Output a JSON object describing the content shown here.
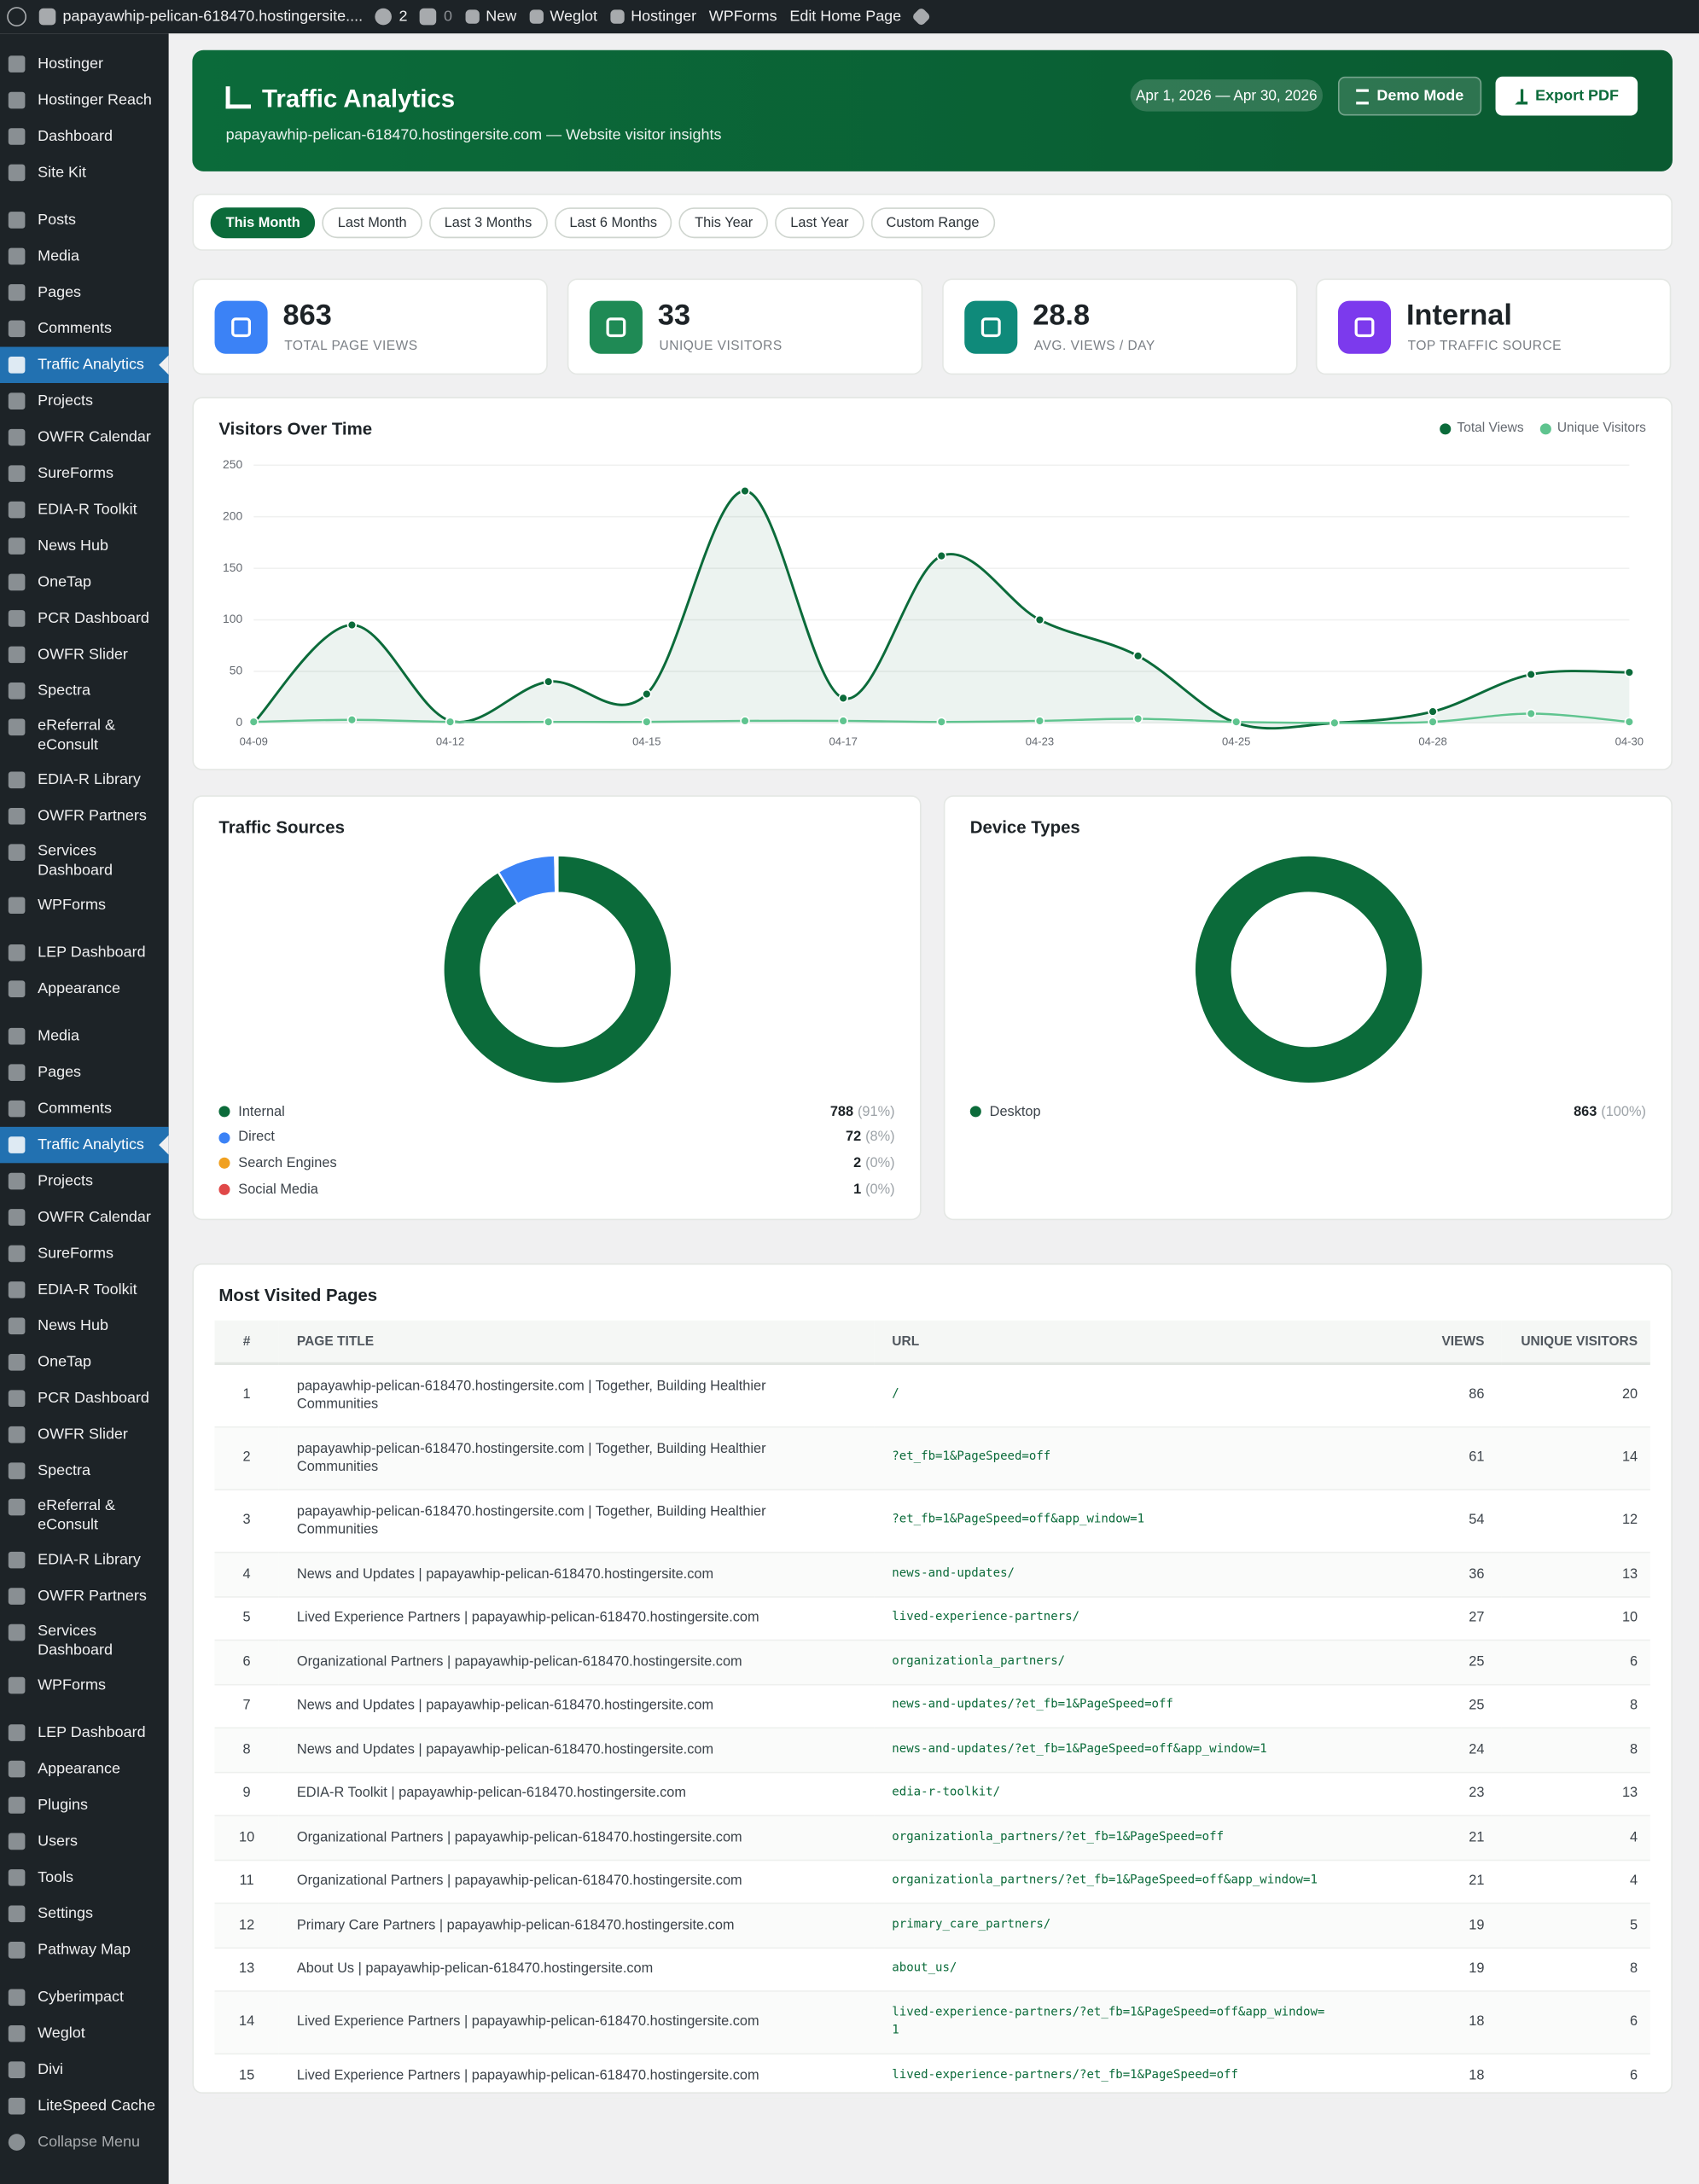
{
  "admin_bar": {
    "site": "papayawhip-pelican-618470.hostingersite....",
    "updates": 2,
    "comments": 0,
    "items": [
      "New",
      "Weglot",
      "Hostinger",
      "WPForms",
      "Edit Home Page"
    ]
  },
  "sidebar": {
    "groups": [
      [
        {
          "label": "Hostinger"
        },
        {
          "label": "Hostinger Reach"
        },
        {
          "label": "Dashboard"
        },
        {
          "label": "Site Kit"
        }
      ],
      [
        {
          "label": "Posts"
        },
        {
          "label": "Media"
        },
        {
          "label": "Pages"
        },
        {
          "label": "Comments"
        },
        {
          "label": "Traffic Analytics",
          "active": true
        },
        {
          "label": "Projects"
        },
        {
          "label": "OWFR Calendar"
        },
        {
          "label": "SureForms"
        },
        {
          "label": "EDIA-R Toolkit"
        },
        {
          "label": "News Hub"
        },
        {
          "label": "OneTap"
        },
        {
          "label": "PCR Dashboard"
        },
        {
          "label": "OWFR Slider"
        },
        {
          "label": "Spectra"
        },
        {
          "label": "eReferral & eConsult"
        },
        {
          "label": "EDIA-R Library"
        },
        {
          "label": "OWFR Partners"
        },
        {
          "label": "Services Dashboard"
        },
        {
          "label": "WPForms"
        }
      ],
      [
        {
          "label": "LEP Dashboard"
        },
        {
          "label": "Appearance"
        }
      ],
      [
        {
          "label": "Media"
        },
        {
          "label": "Pages"
        },
        {
          "label": "Comments"
        },
        {
          "label": "Traffic Analytics",
          "active": true
        },
        {
          "label": "Projects"
        },
        {
          "label": "OWFR Calendar"
        },
        {
          "label": "SureForms"
        },
        {
          "label": "EDIA-R Toolkit"
        },
        {
          "label": "News Hub"
        },
        {
          "label": "OneTap"
        },
        {
          "label": "PCR Dashboard"
        },
        {
          "label": "OWFR Slider"
        },
        {
          "label": "Spectra"
        },
        {
          "label": "eReferral & eConsult"
        },
        {
          "label": "EDIA-R Library"
        },
        {
          "label": "OWFR Partners"
        },
        {
          "label": "Services Dashboard"
        },
        {
          "label": "WPForms"
        }
      ],
      [
        {
          "label": "LEP Dashboard"
        },
        {
          "label": "Appearance"
        },
        {
          "label": "Plugins"
        },
        {
          "label": "Users"
        },
        {
          "label": "Tools"
        },
        {
          "label": "Settings"
        },
        {
          "label": "Pathway Map"
        }
      ],
      [
        {
          "label": "Cyberimpact"
        },
        {
          "label": "Weglot"
        },
        {
          "label": "Divi"
        },
        {
          "label": "LiteSpeed Cache"
        }
      ]
    ],
    "collapse": "Collapse Menu"
  },
  "header": {
    "title": "Traffic Analytics",
    "subtitle": "papayawhip-pelican-618470.hostingersite.com — Website visitor insights",
    "date_range": "Apr 1, 2026 — Apr 30, 2026",
    "buttons": [
      "Demo Mode",
      "Export PDF"
    ]
  },
  "filters": {
    "options": [
      "This Month",
      "Last Month",
      "Last 3 Months",
      "Last 6 Months",
      "This Year",
      "Last Year",
      "Custom Range"
    ],
    "active": 0
  },
  "stats": [
    {
      "value": 863,
      "label": "TOTAL PAGE VIEWS",
      "color": "#3b82f6"
    },
    {
      "value": 33,
      "label": "UNIQUE VISITORS",
      "color": "#1f8a55"
    },
    {
      "value": 28.8,
      "label": "AVG. VIEWS / DAY",
      "color": "#0f8a7a"
    },
    {
      "value": "Internal",
      "label": "TOP TRAFFIC SOURCE",
      "color": "#7c3aed"
    }
  ],
  "chart_data": [
    {
      "type": "line",
      "title": "Visitors Over Time",
      "categories": [
        "04-09",
        null,
        "04-12",
        null,
        "04-15",
        null,
        "04-17",
        null,
        "04-23",
        null,
        "04-25",
        null,
        "04-28",
        null,
        "04-30"
      ],
      "series": [
        {
          "name": "Total Views",
          "color": "#0b6b3a",
          "values": [
            0,
            95,
            2,
            40,
            28,
            225,
            24,
            162,
            100,
            65,
            0,
            0,
            11,
            47,
            49
          ]
        },
        {
          "name": "Unique Visitors",
          "color": "#5fc48f",
          "values": [
            1,
            3,
            1,
            1,
            1,
            2,
            2,
            1,
            2,
            4,
            1,
            0,
            1,
            9,
            1
          ]
        }
      ],
      "ylim": [
        0,
        250
      ],
      "yticks": [
        0,
        50,
        100,
        150,
        200,
        250
      ],
      "grid": true,
      "legend": "top-right"
    },
    {
      "type": "donut",
      "title": "Traffic Sources",
      "categories": [
        "Internal",
        "Direct",
        "Search Engines",
        "Social Media"
      ],
      "values": [
        788,
        72,
        2,
        1
      ],
      "percent_labels": [
        "(91%)",
        "(8%)",
        "(0%)",
        "(0%)"
      ],
      "colors": [
        "#0b6b3a",
        "#3b82f6",
        "#f0a020",
        "#e04848"
      ]
    },
    {
      "type": "donut",
      "title": "Device Types",
      "categories": [
        "Desktop"
      ],
      "values": [
        863
      ],
      "percent_labels": [
        "(100%)"
      ],
      "colors": [
        "#0b6b3a"
      ]
    }
  ],
  "table": {
    "title": "Most Visited Pages",
    "columns": [
      "#",
      "PAGE TITLE",
      "URL",
      "VIEWS",
      "UNIQUE VISITORS"
    ],
    "rows": [
      [
        1,
        "papayawhip-pelican-618470.hostingersite.com | Together, Building Healthier Communities",
        "/",
        86,
        20
      ],
      [
        2,
        "papayawhip-pelican-618470.hostingersite.com | Together, Building Healthier Communities",
        "?et_fb=1&PageSpeed=off",
        61,
        14
      ],
      [
        3,
        "papayawhip-pelican-618470.hostingersite.com | Together, Building Healthier Communities",
        "?et_fb=1&PageSpeed=off&app_window=1",
        54,
        12
      ],
      [
        4,
        "News and Updates | papayawhip-pelican-618470.hostingersite.com",
        "news-and-updates/",
        36,
        13
      ],
      [
        5,
        "Lived Experience Partners | papayawhip-pelican-618470.hostingersite.com",
        "lived-experience-partners/",
        27,
        10
      ],
      [
        6,
        "Organizational Partners | papayawhip-pelican-618470.hostingersite.com",
        "organizationla_partners/",
        25,
        6
      ],
      [
        7,
        "News and Updates | papayawhip-pelican-618470.hostingersite.com",
        "news-and-updates/?et_fb=1&PageSpeed=off",
        25,
        8
      ],
      [
        8,
        "News and Updates | papayawhip-pelican-618470.hostingersite.com",
        "news-and-updates/?et_fb=1&PageSpeed=off&app_window=1",
        24,
        8
      ],
      [
        9,
        "EDIA-R Toolkit | papayawhip-pelican-618470.hostingersite.com",
        "edia-r-toolkit/",
        23,
        13
      ],
      [
        10,
        "Organizational Partners | papayawhip-pelican-618470.hostingersite.com",
        "organizationla_partners/?et_fb=1&PageSpeed=off",
        21,
        4
      ],
      [
        11,
        "Organizational Partners | papayawhip-pelican-618470.hostingersite.com",
        "organizationla_partners/?et_fb=1&PageSpeed=off&app_window=1",
        21,
        4
      ],
      [
        12,
        "Primary Care Partners | papayawhip-pelican-618470.hostingersite.com",
        "primary_care_partners/",
        19,
        5
      ],
      [
        13,
        "About Us | papayawhip-pelican-618470.hostingersite.com",
        "about_us/",
        19,
        8
      ],
      [
        14,
        "Lived Experience Partners | papayawhip-pelican-618470.hostingersite.com",
        "lived-experience-partners/?et_fb=1&PageSpeed=off&app_window=1",
        18,
        6
      ],
      [
        15,
        "Lived Experience Partners | papayawhip-pelican-618470.hostingersite.com",
        "lived-experience-partners/?et_fb=1&PageSpeed=off",
        18,
        6
      ]
    ]
  }
}
